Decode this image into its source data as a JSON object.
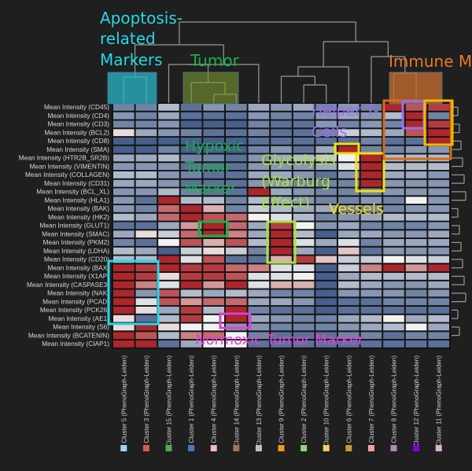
{
  "chart_data": {
    "type": "heatmap",
    "title": "",
    "xlabel": "",
    "ylabel": "",
    "colormap": {
      "low": "#1b3a73",
      "mid": "#f2f2f2",
      "high": "#a50f15"
    },
    "rows": [
      "Mean Intensity (CD45)",
      "Mean Intensity (CD4)",
      "Mean Intensity (CD3)",
      "Mean Intensity (BCL2)",
      "Mean Intensity (CD8)",
      "Mean Intensity (SMA)",
      "Mean Intensity (HTR2B_SR2B)",
      "Mean Intensity (VIMENTIN)",
      "Mean Intensity (COLLAGEN)",
      "Mean Intensity (CD31)",
      "Mean Intensity (BCL_XL)",
      "Mean Intensity (HLA1)",
      "Mean Intensity (BAK)",
      "Mean Intensity (HK2)",
      "Mean Intensity (GLUT1)",
      "Mean Intensity (SMAC)",
      "Mean Intensity (PKM2)",
      "Mean Intensity (LDHA)",
      "Mean Intensity (CD20)",
      "Mean Intensity (BAX)",
      "Mean Intensity (X1AP)",
      "Mean Intensity (CASPASE3)",
      "Mean Intensity (NAK)",
      "Mean Intensity (PCAD)",
      "Mean Intensity (PCK26)",
      "Mean Intensity (AE1)",
      "Mean Intensity (S6)",
      "Mean Intensity (BCATENIN)",
      "Mean Intensity (CIAP1)"
    ],
    "columns": [
      {
        "label": "Cluster 5 (PhenoGraph-Leiden)",
        "color": "#a6d4f2"
      },
      {
        "label": "Cluster 3 (PhenoGraph-Leiden)",
        "color": "#e05656"
      },
      {
        "label": "Cluster 15 (PhenoGraph-Leiden)",
        "color": "#4caf50"
      },
      {
        "label": "Cluster 1 (PhenoGraph-Leiden)",
        "color": "#4a7ab8"
      },
      {
        "label": "Cluster 4 (PhenoGraph-Leiden)",
        "color": "#f5b8d0"
      },
      {
        "label": "Cluster 14 (PhenoGraph-Leiden)",
        "color": "#9c7560"
      },
      {
        "label": "Cluster 13 (PhenoGraph-Leiden)",
        "color": "#c0c0c0"
      },
      {
        "label": "Cluster 9 (PhenoGraph-Leiden)",
        "color": "#f39422"
      },
      {
        "label": "Cluster 2 (PhenoGraph-Leiden)",
        "color": "#8fd67a"
      },
      {
        "label": "Cluster 10 (PhenoGraph-Leiden)",
        "color": "#f5d05a"
      },
      {
        "label": "Cluster 6 (PhenoGraph-Leiden)",
        "color": "#bfa030"
      },
      {
        "label": "Cluster 7 (PhenoGraph-Leiden)",
        "color": "#f5a0a0"
      },
      {
        "label": "Cluster 8 (PhenoGraph-Leiden)",
        "color": "#b088b8"
      },
      {
        "label": "Cluster 12 (PhenoGraph-Leiden)",
        "color": "#7a00f0"
      },
      {
        "label": "Cluster 11 (PhenoGraph-Leiden)",
        "color": "#dab0d8"
      }
    ],
    "values": [
      [
        -0.6,
        -0.6,
        -0.3,
        -0.7,
        -0.5,
        -0.6,
        -0.4,
        -0.5,
        -0.4,
        -0.6,
        -0.5,
        -0.6,
        0.9,
        0.7,
        0.8
      ],
      [
        -0.5,
        -0.6,
        -0.4,
        -0.7,
        -0.7,
        -0.7,
        -0.5,
        -0.6,
        -0.6,
        -0.5,
        -0.4,
        -0.5,
        -0.3,
        0.9,
        -0.6
      ],
      [
        -0.6,
        -0.6,
        -0.5,
        -0.8,
        -0.8,
        -0.8,
        -0.6,
        -0.7,
        -0.7,
        -0.5,
        -0.6,
        -0.5,
        -0.6,
        0.9,
        0.8
      ],
      [
        0.1,
        -0.4,
        -0.5,
        -0.6,
        -0.7,
        -0.7,
        -0.6,
        -0.7,
        -0.7,
        -0.6,
        -0.2,
        -0.3,
        -0.4,
        0.7,
        0.9
      ],
      [
        -0.8,
        -0.8,
        -0.8,
        -0.8,
        -0.8,
        -0.8,
        -0.7,
        -0.7,
        -0.7,
        -0.7,
        -0.7,
        -0.6,
        -0.7,
        -0.7,
        0.9
      ],
      [
        -0.8,
        -0.8,
        -0.6,
        -0.8,
        -0.8,
        -0.8,
        -0.6,
        -0.5,
        -0.7,
        -0.4,
        0.9,
        -0.6,
        -0.6,
        -0.5,
        -0.5
      ],
      [
        -0.4,
        -0.4,
        -0.3,
        -0.6,
        -0.6,
        -0.7,
        -0.5,
        -0.4,
        -0.3,
        -0.2,
        0.0,
        0.9,
        -0.3,
        -0.3,
        -0.3
      ],
      [
        -0.5,
        -0.5,
        -0.5,
        -0.7,
        -0.7,
        -0.7,
        -0.5,
        -0.5,
        -0.5,
        -0.4,
        -0.1,
        0.9,
        -0.3,
        -0.3,
        -0.3
      ],
      [
        -0.3,
        -0.3,
        -0.5,
        -0.6,
        -0.7,
        -0.7,
        -0.4,
        -0.4,
        -0.5,
        -0.7,
        -0.5,
        0.9,
        -0.4,
        -0.4,
        -0.5
      ],
      [
        -0.4,
        -0.4,
        -0.5,
        -0.7,
        -0.7,
        -0.7,
        -0.5,
        -0.5,
        -0.6,
        -0.6,
        -0.6,
        0.9,
        -0.5,
        -0.5,
        -0.5
      ],
      [
        -0.5,
        -0.5,
        -0.3,
        -0.6,
        -0.7,
        -0.7,
        0.9,
        -0.4,
        -0.5,
        -0.6,
        -0.6,
        -0.6,
        -0.5,
        -0.5,
        -0.5
      ],
      [
        -0.5,
        -0.7,
        0.9,
        -0.3,
        -0.3,
        -0.6,
        -0.3,
        -0.4,
        -0.5,
        -0.6,
        -0.6,
        -0.5,
        -0.6,
        0.0,
        -0.5
      ],
      [
        -0.5,
        -0.6,
        0.6,
        0.9,
        0.3,
        -0.6,
        -0.2,
        -0.3,
        -0.4,
        -0.4,
        -0.6,
        -0.6,
        -0.6,
        -0.5,
        -0.5
      ],
      [
        -0.3,
        -0.4,
        0.6,
        0.9,
        0.7,
        0.6,
        0.0,
        -0.1,
        -0.3,
        -0.6,
        -0.5,
        -0.4,
        -0.3,
        -0.3,
        -0.3
      ],
      [
        -0.7,
        -0.7,
        -0.4,
        0.4,
        0.9,
        0.6,
        -0.4,
        0.8,
        0.0,
        -0.5,
        -0.4,
        -0.6,
        -0.6,
        -0.6,
        -0.5
      ],
      [
        -0.4,
        0.1,
        -0.2,
        0.6,
        0.9,
        0.5,
        -0.4,
        0.9,
        -0.3,
        -0.8,
        -0.4,
        -0.4,
        -0.5,
        -0.5,
        -0.4
      ],
      [
        -0.6,
        -0.7,
        0.0,
        0.7,
        0.3,
        0.7,
        -0.3,
        0.9,
        -0.1,
        -0.4,
        -0.1,
        -0.6,
        -0.4,
        -0.4,
        -0.4
      ],
      [
        -0.3,
        -0.4,
        -0.8,
        -0.2,
        0.1,
        -0.2,
        -0.6,
        0.9,
        -0.4,
        -0.8,
        0.2,
        -0.7,
        -0.5,
        -0.5,
        -0.5
      ],
      [
        -0.3,
        -0.3,
        0.9,
        -0.1,
        0.7,
        -0.7,
        -0.7,
        0.3,
        0.8,
        0.2,
        -0.2,
        -0.2,
        0.0,
        -0.1,
        -0.2
      ],
      [
        0.9,
        0.8,
        0.9,
        0.8,
        0.8,
        0.6,
        0.5,
        -0.1,
        -0.1,
        -0.8,
        -0.2,
        0.5,
        0.9,
        0.4,
        0.9
      ],
      [
        0.9,
        0.8,
        0.1,
        0.8,
        0.8,
        0.7,
        -0.1,
        -0.1,
        0.0,
        -0.8,
        -0.4,
        -0.3,
        -0.3,
        -0.3,
        -0.3
      ],
      [
        0.9,
        0.5,
        -0.1,
        0.9,
        0.4,
        0.9,
        -0.1,
        0.3,
        0.3,
        -0.8,
        -0.3,
        -0.4,
        -0.5,
        -0.5,
        -0.4
      ],
      [
        0.9,
        -0.5,
        0.7,
        -0.3,
        -0.4,
        -0.3,
        -0.4,
        -0.6,
        -0.6,
        -0.8,
        -0.5,
        -0.5,
        -0.5,
        -0.6,
        -0.5
      ],
      [
        0.9,
        -0.1,
        0.7,
        0.4,
        0.6,
        0.6,
        -0.4,
        -0.4,
        -0.5,
        -0.8,
        -0.7,
        -0.7,
        -0.6,
        -0.6,
        -0.6
      ],
      [
        0.9,
        0.1,
        -0.4,
        0.8,
        -0.3,
        0.9,
        -0.6,
        -0.7,
        -0.7,
        -0.8,
        -0.7,
        -0.7,
        -0.7,
        -0.7,
        -0.7
      ],
      [
        0.1,
        -0.7,
        -0.3,
        0.8,
        0.0,
        0.9,
        -0.4,
        -0.5,
        -0.6,
        -0.6,
        -0.4,
        -0.3,
        0.0,
        -0.4,
        -0.3
      ],
      [
        0.1,
        0.9,
        0.1,
        0.0,
        0.0,
        -0.5,
        -0.5,
        -0.6,
        -0.6,
        -0.6,
        -0.5,
        -0.4,
        -0.3,
        0.0,
        -0.4
      ],
      [
        0.9,
        0.7,
        -0.3,
        0.5,
        0.6,
        0.0,
        -0.6,
        -0.7,
        -0.7,
        -0.7,
        -0.6,
        -0.6,
        -0.7,
        -0.6,
        -0.6
      ],
      [
        0.9,
        0.9,
        -0.7,
        -0.4,
        0.0,
        0.0,
        -0.7,
        -0.7,
        -0.7,
        -0.7,
        -0.7,
        -0.7,
        -0.7,
        -0.7,
        -0.7
      ]
    ],
    "annotations": [
      {
        "text": "Apoptosis-\nrelated\nMarkers",
        "color": "#27d8e8"
      },
      {
        "text": "Tumor",
        "color": "#18b04a"
      },
      {
        "text": "Immune M",
        "color": "#e87a2a"
      },
      {
        "text": "Helper T-\nCells",
        "color": "#9a6cf0"
      },
      {
        "text": "Hypoxic\nTumor\nMarker",
        "color": "#18b04a"
      },
      {
        "text": "Glycolysis\n(Warburg\nEffect)",
        "color": "#a8e040"
      },
      {
        "text": "Vessels",
        "color": "#f0e010"
      },
      {
        "text": "Normoxic Tumor Marker",
        "color": "#e040d8"
      }
    ]
  }
}
